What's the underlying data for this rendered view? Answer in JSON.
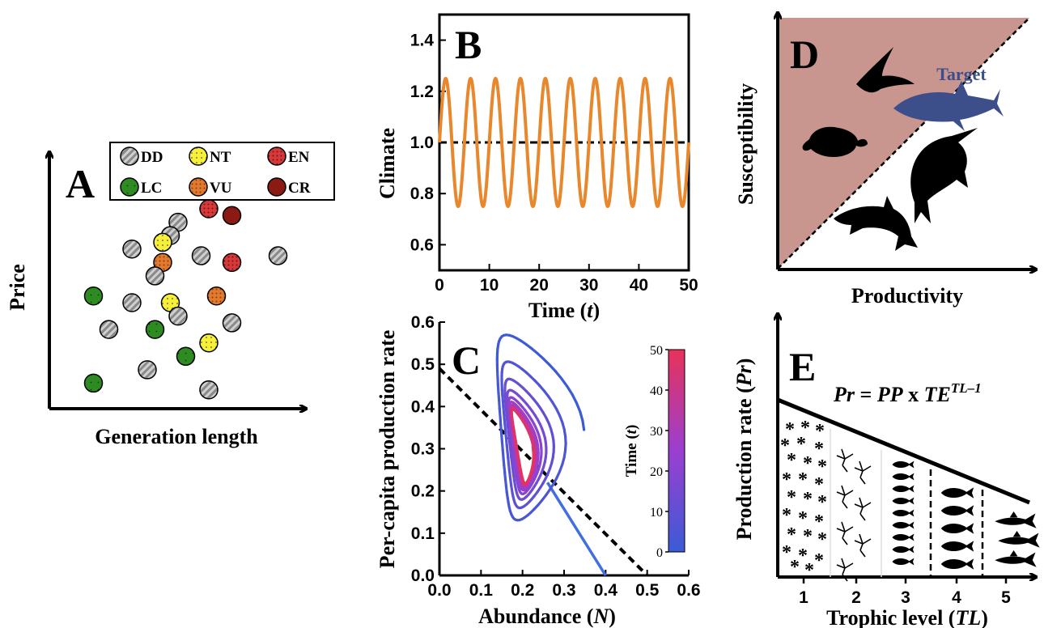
{
  "panels": {
    "a": {
      "letter": "A",
      "xlabel": "Generation length",
      "ylabel": "Price"
    },
    "b": {
      "letter": "B",
      "xlabel": "Time",
      "xlabel_var": "t",
      "ylabel": "Climate"
    },
    "c": {
      "letter": "C",
      "xlabel": "Abundance",
      "xlabel_var": "N",
      "ylabel": "Per-capita production rate",
      "colorbar_label": "Time",
      "colorbar_var": "t",
      "colorbar_ticks": [
        "0",
        "10",
        "20",
        "30",
        "40",
        "50"
      ]
    },
    "d": {
      "letter": "D",
      "xlabel": "Productivity",
      "ylabel": "Susceptibility",
      "target_label": "Target"
    },
    "e": {
      "letter": "E",
      "xlabel": "Trophic level",
      "xlabel_var": "TL",
      "ylabel": "Production rate",
      "ylabel_var": "Pr",
      "equation": {
        "lhs": "Pr",
        "eq": " = ",
        "pp": "PP",
        "x": " x ",
        "te": "TE",
        "exp": "TL–1"
      },
      "tick_labels": [
        "1",
        "2",
        "3",
        "4",
        "5"
      ]
    }
  },
  "legend": {
    "items": [
      {
        "code": "DD",
        "color": "#c9c9c9",
        "pattern": "hatch"
      },
      {
        "code": "NT",
        "color": "#f7f038",
        "pattern": "dots"
      },
      {
        "code": "EN",
        "color": "#d53a3a",
        "pattern": "dots"
      },
      {
        "code": "LC",
        "color": "#2e8b22",
        "pattern": "dots"
      },
      {
        "code": "VU",
        "color": "#e07a2e",
        "pattern": "dots"
      },
      {
        "code": "CR",
        "color": "#8b1a14",
        "pattern": "none"
      }
    ]
  },
  "chart_data": [
    {
      "type": "scatter",
      "panel": "A",
      "xlabel": "Generation length",
      "ylabel": "Price",
      "note": "conceptual schematic, no numeric axes",
      "points": [
        {
          "x": 0.23,
          "y": 0.27,
          "cat": "CR"
        },
        {
          "x": 0.16,
          "y": 0.26,
          "cat": "DD"
        },
        {
          "x": 0.2,
          "y": 0.28,
          "cat": "EN"
        },
        {
          "x": 0.15,
          "y": 0.24,
          "cat": "DD"
        },
        {
          "x": 0.1,
          "y": 0.22,
          "cat": "DD"
        },
        {
          "x": 0.14,
          "y": 0.23,
          "cat": "NT"
        },
        {
          "x": 0.14,
          "y": 0.2,
          "cat": "VU"
        },
        {
          "x": 0.19,
          "y": 0.21,
          "cat": "DD"
        },
        {
          "x": 0.23,
          "y": 0.2,
          "cat": "EN"
        },
        {
          "x": 0.29,
          "y": 0.21,
          "cat": "DD"
        },
        {
          "x": 0.13,
          "y": 0.18,
          "cat": "DD"
        },
        {
          "x": 0.05,
          "y": 0.15,
          "cat": "LC"
        },
        {
          "x": 0.1,
          "y": 0.14,
          "cat": "DD"
        },
        {
          "x": 0.15,
          "y": 0.14,
          "cat": "NT"
        },
        {
          "x": 0.21,
          "y": 0.15,
          "cat": "VU"
        },
        {
          "x": 0.16,
          "y": 0.12,
          "cat": "DD"
        },
        {
          "x": 0.23,
          "y": 0.11,
          "cat": "DD"
        },
        {
          "x": 0.07,
          "y": 0.1,
          "cat": "DD"
        },
        {
          "x": 0.13,
          "y": 0.1,
          "cat": "LC"
        },
        {
          "x": 0.2,
          "y": 0.08,
          "cat": "NT"
        },
        {
          "x": 0.17,
          "y": 0.06,
          "cat": "LC"
        },
        {
          "x": 0.12,
          "y": 0.04,
          "cat": "DD"
        },
        {
          "x": 0.05,
          "y": 0.02,
          "cat": "LC"
        },
        {
          "x": 0.2,
          "y": 0.01,
          "cat": "DD"
        }
      ]
    },
    {
      "type": "line",
      "panel": "B",
      "xlabel": "Time (t)",
      "ylabel": "Climate",
      "xlim": [
        0,
        50
      ],
      "ylim": [
        0.5,
        1.5
      ],
      "xticks": [
        0,
        10,
        20,
        30,
        40,
        50
      ],
      "yticks": [
        0.6,
        0.8,
        1.0,
        1.2,
        1.4
      ],
      "series": [
        {
          "kind": "sinusoid",
          "color": "#e8872b",
          "mean": 1.0,
          "amplitude": 0.25,
          "period": 5,
          "start_phase": "rising"
        },
        {
          "kind": "constant",
          "color": "#000000",
          "dashed": true,
          "y": 1.0
        }
      ]
    },
    {
      "type": "line",
      "panel": "C",
      "xlabel": "Abundance (N)",
      "ylabel": "Per-capita production rate",
      "xlim": [
        0,
        0.6
      ],
      "ylim": [
        0,
        0.6
      ],
      "xticks": [
        0.0,
        0.1,
        0.2,
        0.3,
        0.4,
        0.5,
        0.6
      ],
      "yticks": [
        0.0,
        0.1,
        0.2,
        0.3,
        0.4,
        0.5,
        0.6
      ],
      "colorbar": {
        "label": "Time (t)",
        "range": [
          0,
          50
        ],
        "colors": [
          "#3b5bd6",
          "#9b3fd0",
          "#e8325a"
        ]
      },
      "series": [
        {
          "name": "",
          "color": "#000000",
          "dashed": true,
          "x": [
            0.0,
            0.5
          ],
          "y": [
            0.49,
            0.0
          ]
        },
        {
          "name": "",
          "color": "#3f6fe0",
          "x": [
            0.26,
            0.4
          ],
          "y": [
            0.22,
            0.0
          ]
        }
      ]
    },
    {
      "type": "area",
      "panel": "D",
      "xlabel": "Productivity",
      "ylabel": "Susceptibility",
      "fill_color": "#c9958f",
      "diagonal": "dashed"
    },
    {
      "type": "area",
      "panel": "E",
      "xlabel": "Trophic level (TL)",
      "ylabel": "Production rate (Pr)",
      "categories": [
        "1",
        "2",
        "3",
        "4",
        "5"
      ],
      "equation": "Pr = PP x TE^(TL–1)"
    }
  ]
}
